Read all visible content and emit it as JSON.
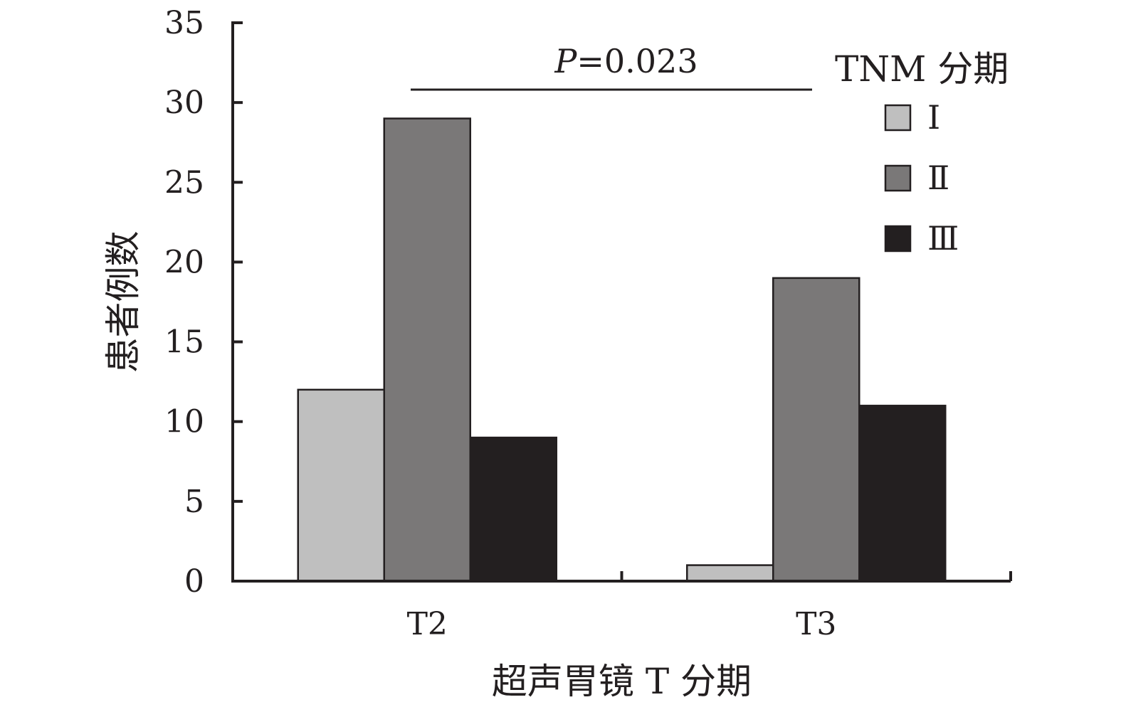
{
  "chart_data": {
    "type": "bar",
    "categories": [
      "T2",
      "T3"
    ],
    "series": [
      {
        "name": "Ⅰ",
        "values": [
          12,
          1
        ],
        "color": "#bfbfbf"
      },
      {
        "name": "Ⅱ",
        "values": [
          29,
          19
        ],
        "color": "#7a7878"
      },
      {
        "name": "Ⅲ",
        "values": [
          9,
          11
        ],
        "color": "#231f20"
      }
    ],
    "xlabel": "超声胃镜 T 分期",
    "ylabel": "患者例数",
    "ylim": [
      0,
      35
    ],
    "yticks": [
      0,
      5,
      10,
      15,
      20,
      25,
      30,
      35
    ],
    "legend": {
      "title": "TNM 分期",
      "position": "top-right"
    },
    "annotation": {
      "prefix": "P",
      "text": "=0.023"
    },
    "grid": false
  }
}
